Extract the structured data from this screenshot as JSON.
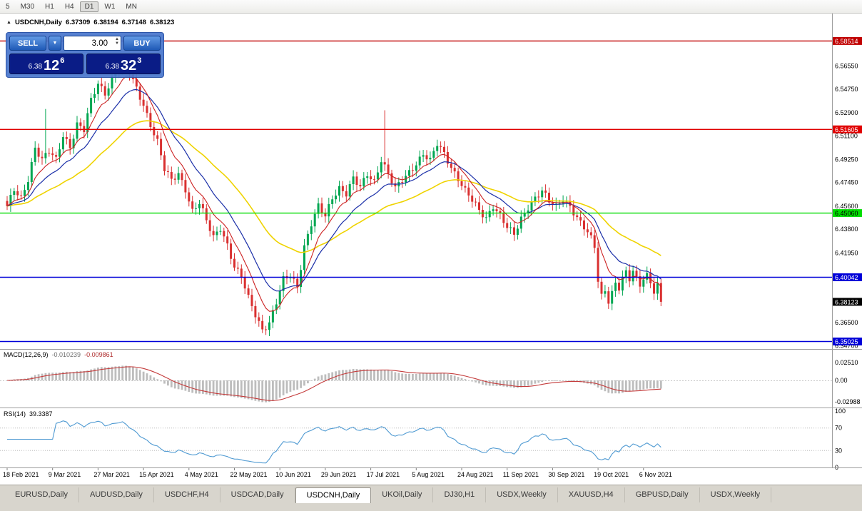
{
  "toolbar": {
    "timeframes": [
      "5",
      "M30",
      "H1",
      "H4",
      "D1",
      "W1",
      "MN"
    ],
    "active": "D1"
  },
  "header": {
    "symbol": "USDCNH,Daily",
    "open": "6.37309",
    "high": "6.38194",
    "low": "6.37148",
    "close": "6.38123"
  },
  "trade_panel": {
    "sell_label": "SELL",
    "buy_label": "BUY",
    "volume": "3.00",
    "sell_price": {
      "prefix": "6.38",
      "big": "12",
      "sup": "6"
    },
    "buy_price": {
      "prefix": "6.38",
      "big": "32",
      "sup": "3"
    }
  },
  "chart_data": {
    "type": "candlestick",
    "symbol": "USDCNH",
    "timeframe": "Daily",
    "price_range": {
      "top": 6.606,
      "bottom": 6.3455
    },
    "bars_count": 188,
    "close_anchors": [
      [
        0,
        6.455
      ],
      [
        2,
        6.468
      ],
      [
        4,
        6.462
      ],
      [
        6,
        6.478
      ],
      [
        8,
        6.502
      ],
      [
        10,
        6.492
      ],
      [
        12,
        6.498
      ],
      [
        14,
        6.492
      ],
      [
        16,
        6.512
      ],
      [
        18,
        6.503
      ],
      [
        20,
        6.52
      ],
      [
        22,
        6.515
      ],
      [
        24,
        6.538
      ],
      [
        26,
        6.552
      ],
      [
        28,
        6.545
      ],
      [
        30,
        6.556
      ],
      [
        33,
        6.568
      ],
      [
        35,
        6.56
      ],
      [
        37,
        6.548
      ],
      [
        39,
        6.536
      ],
      [
        41,
        6.52
      ],
      [
        43,
        6.506
      ],
      [
        45,
        6.484
      ],
      [
        47,
        6.476
      ],
      [
        49,
        6.482
      ],
      [
        51,
        6.47
      ],
      [
        53,
        6.452
      ],
      [
        55,
        6.458
      ],
      [
        57,
        6.444
      ],
      [
        59,
        6.432
      ],
      [
        61,
        6.44
      ],
      [
        63,
        6.426
      ],
      [
        65,
        6.408
      ],
      [
        67,
        6.4
      ],
      [
        69,
        6.384
      ],
      [
        71,
        6.372
      ],
      [
        73,
        6.36
      ],
      [
        75,
        6.365
      ],
      [
        77,
        6.38
      ],
      [
        79,
        6.398
      ],
      [
        81,
        6.402
      ],
      [
        83,
        6.394
      ],
      [
        85,
        6.425
      ],
      [
        87,
        6.442
      ],
      [
        89,
        6.455
      ],
      [
        91,
        6.448
      ],
      [
        93,
        6.463
      ],
      [
        95,
        6.471
      ],
      [
        97,
        6.466
      ],
      [
        99,
        6.477
      ],
      [
        101,
        6.47
      ],
      [
        103,
        6.481
      ],
      [
        105,
        6.476
      ],
      [
        107,
        6.493
      ],
      [
        109,
        6.481
      ],
      [
        111,
        6.469
      ],
      [
        113,
        6.476
      ],
      [
        115,
        6.483
      ],
      [
        117,
        6.49
      ],
      [
        119,
        6.497
      ],
      [
        121,
        6.491
      ],
      [
        123,
        6.504
      ],
      [
        125,
        6.497
      ],
      [
        127,
        6.487
      ],
      [
        129,
        6.478
      ],
      [
        131,
        6.468
      ],
      [
        133,
        6.46
      ],
      [
        135,
        6.452
      ],
      [
        137,
        6.447
      ],
      [
        139,
        6.457
      ],
      [
        141,
        6.449
      ],
      [
        143,
        6.439
      ],
      [
        145,
        6.433
      ],
      [
        147,
        6.446
      ],
      [
        149,
        6.456
      ],
      [
        151,
        6.463
      ],
      [
        153,
        6.468
      ],
      [
        155,
        6.459
      ],
      [
        157,
        6.455
      ],
      [
        159,
        6.462
      ],
      [
        161,
        6.457
      ],
      [
        163,
        6.447
      ],
      [
        165,
        6.439
      ],
      [
        167,
        6.43
      ],
      [
        168,
        6.424
      ],
      [
        169,
        6.398
      ],
      [
        170,
        6.386
      ],
      [
        171,
        6.391
      ],
      [
        172,
        6.383
      ],
      [
        173,
        6.389
      ],
      [
        174,
        6.396
      ],
      [
        175,
        6.392
      ],
      [
        176,
        6.399
      ],
      [
        177,
        6.403
      ],
      [
        178,
        6.398
      ],
      [
        179,
        6.405
      ],
      [
        180,
        6.399
      ],
      [
        181,
        6.395
      ],
      [
        182,
        6.401
      ],
      [
        183,
        6.403
      ],
      [
        184,
        6.397
      ],
      [
        185,
        6.39
      ],
      [
        186,
        6.394
      ],
      [
        187,
        6.3812
      ]
    ],
    "spikes": [
      [
        11,
        6.532
      ],
      [
        108,
        6.531
      ]
    ],
    "y_ticks": [
      "6.56550",
      "6.54750",
      "6.52900",
      "6.51100",
      "6.49250",
      "6.47450",
      "6.45600",
      "6.43800",
      "6.41950",
      "6.36500",
      "6.34700"
    ],
    "levels": [
      {
        "price": 6.58514,
        "label": "6.58514",
        "color": "#C00000",
        "text": "#FFFFFF"
      },
      {
        "price": 6.51605,
        "label": "6.51605",
        "color": "#E00000",
        "text": "#FFFFFF"
      },
      {
        "price": 6.4506,
        "label": "6.45060",
        "color": "#00DD00",
        "text": "#000000"
      },
      {
        "price": 6.40042,
        "label": "6.40042",
        "color": "#0000D8",
        "text": "#FFFFFF"
      },
      {
        "price": 6.35025,
        "label": "6.35025",
        "color": "#0000D8",
        "text": "#FFFFFF"
      }
    ],
    "current_price": {
      "value": 6.38123,
      "label": "6.38123",
      "color": "#000000",
      "text": "#FFFFFF"
    },
    "colors": {
      "up": "#00A651",
      "down": "#D93030",
      "ma_fast": "#CC2222",
      "ma_mid": "#1B2FA8",
      "ma_slow": "#EFD300",
      "macd_hist": "#BDBDBD",
      "macd_signal": "#C43B3B",
      "rsi": "#4F9AD2"
    },
    "indicators": {
      "macd": {
        "label": "MACD(12,26,9)",
        "value_main": "-0.010239",
        "value_signal": "-0.009861",
        "axis": [
          "0.02510",
          "0.00",
          "-0.02988"
        ],
        "params": [
          12,
          26,
          9
        ]
      },
      "rsi": {
        "label": "RSI(14)",
        "value": "39.3387",
        "axis": [
          "100",
          "70",
          "30",
          "0"
        ],
        "levels": [
          70,
          30
        ],
        "period": 14
      }
    },
    "x_labels": [
      "18 Feb 2021",
      "9 Mar 2021",
      "27 Mar 2021",
      "15 Apr 2021",
      "4 May 2021",
      "22 May 2021",
      "10 Jun 2021",
      "29 Jun 2021",
      "17 Jul 2021",
      "5 Aug 2021",
      "24 Aug 2021",
      "11 Sep 2021",
      "30 Sep 2021",
      "19 Oct 2021",
      "6 Nov 2021"
    ],
    "x_label_step": 13
  },
  "tabs": {
    "items": [
      "EURUSD,Daily",
      "AUDUSD,Daily",
      "USDCHF,H4",
      "USDCAD,Daily",
      "USDCNH,Daily",
      "UKOil,Daily",
      "DJ30,H1",
      "USDX,Weekly",
      "XAUUSD,H4",
      "GBPUSD,Daily",
      "USDX,Weekly"
    ],
    "active_index": 4
  }
}
